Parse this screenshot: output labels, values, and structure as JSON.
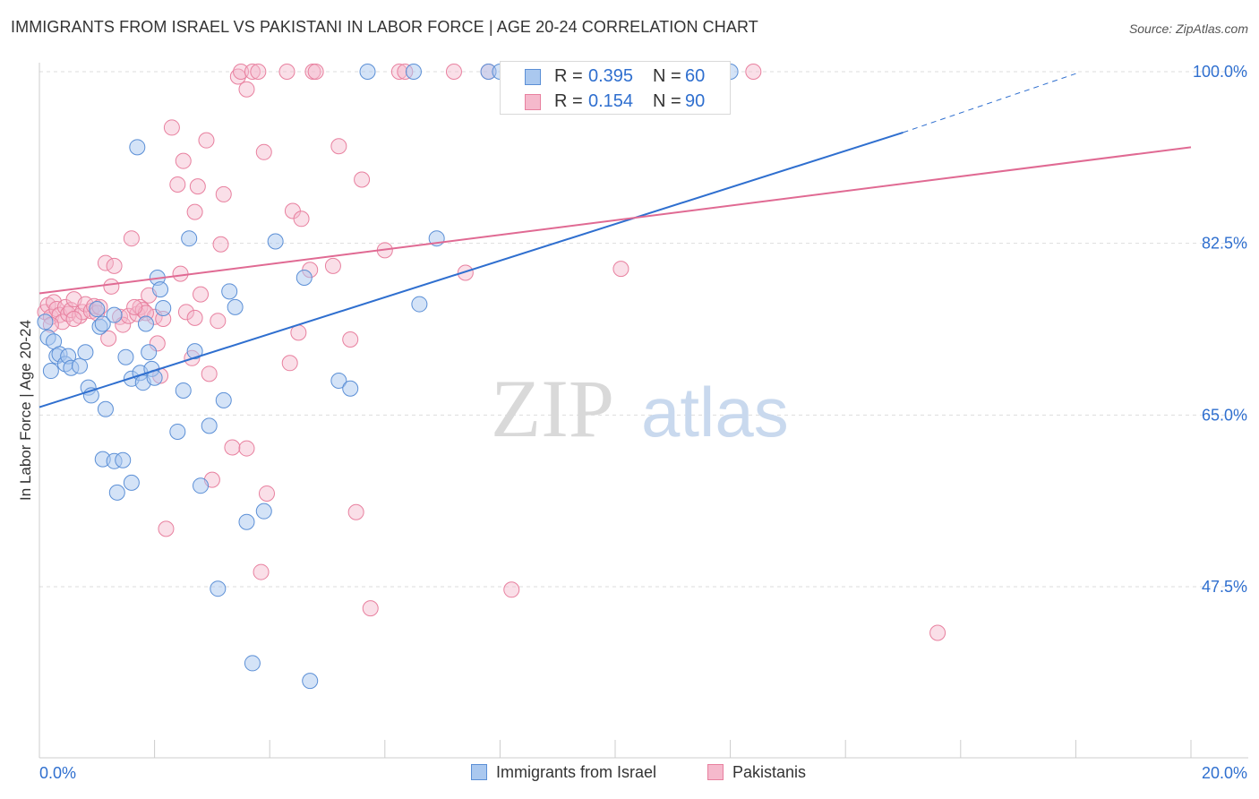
{
  "title": "IMMIGRANTS FROM ISRAEL VS PAKISTANI IN LABOR FORCE | AGE 20-24 CORRELATION CHART",
  "source": "Source: ZipAtlas.com",
  "watermark": {
    "zip": "ZIP",
    "atlas": "atlas"
  },
  "legend_box": {
    "r_label": "R =",
    "n_label": "N =",
    "israel": {
      "r": "0.395",
      "n": "60"
    },
    "pakistani": {
      "r": "0.154",
      "n": "90"
    }
  },
  "colors": {
    "israel_fill": "#aac8ef",
    "israel_stroke": "#5b8fd6",
    "israel_line": "#2f6fcf",
    "pakistani_fill": "#f5b9cc",
    "pakistani_stroke": "#e8809f",
    "pakistani_line": "#e06a93",
    "value_text": "#2f6fcf",
    "grid": "#dddddd",
    "axis": "#cccccc"
  },
  "chart_data": {
    "type": "scatter",
    "title": "IMMIGRANTS FROM ISRAEL VS PAKISTANI IN LABOR FORCE | AGE 20-24 CORRELATION CHART",
    "xlabel": "",
    "ylabel": "In Labor Force | Age 20-24",
    "xlim": [
      0,
      20
    ],
    "ylim": [
      32,
      103.5
    ],
    "x_tick_labels": [
      "0.0%",
      "20.0%"
    ],
    "y_ticks": [
      47.5,
      65.0,
      82.5,
      100.0
    ],
    "y_tick_labels": [
      "47.5%",
      "65.0%",
      "82.5%",
      "100.0%"
    ],
    "grid": true,
    "legend_position": "top-center",
    "series": [
      {
        "name": "Immigrants from Israel",
        "r": 0.395,
        "n": 60,
        "trend": {
          "x0": 0,
          "y0": 65.8,
          "x1": 15.0,
          "y1": 93.8,
          "dashed_to_x": 18.0,
          "dashed_to_y": 99.8
        },
        "points": [
          [
            0.1,
            74.5
          ],
          [
            0.15,
            72.9
          ],
          [
            0.2,
            69.5
          ],
          [
            0.25,
            72.5
          ],
          [
            0.3,
            71.0
          ],
          [
            0.35,
            71.2
          ],
          [
            0.45,
            70.2
          ],
          [
            0.5,
            71.0
          ],
          [
            0.55,
            69.8
          ],
          [
            0.7,
            70.0
          ],
          [
            0.8,
            71.4
          ],
          [
            0.85,
            67.8
          ],
          [
            0.9,
            67.0
          ],
          [
            1.0,
            75.8
          ],
          [
            1.05,
            74.0
          ],
          [
            1.1,
            74.3
          ],
          [
            1.15,
            65.6
          ],
          [
            1.3,
            75.2
          ],
          [
            1.5,
            70.9
          ],
          [
            1.6,
            68.7
          ],
          [
            1.75,
            69.3
          ],
          [
            1.8,
            68.3
          ],
          [
            1.85,
            74.3
          ],
          [
            1.9,
            71.4
          ],
          [
            1.95,
            69.7
          ],
          [
            2.0,
            68.8
          ],
          [
            2.05,
            79.0
          ],
          [
            2.1,
            77.8
          ],
          [
            2.15,
            75.9
          ],
          [
            2.4,
            63.3
          ],
          [
            2.5,
            67.5
          ],
          [
            2.6,
            83.0
          ],
          [
            2.7,
            71.5
          ],
          [
            2.8,
            57.8
          ],
          [
            2.95,
            63.9
          ],
          [
            3.2,
            66.5
          ],
          [
            3.3,
            77.6
          ],
          [
            3.4,
            76.0
          ],
          [
            3.6,
            54.1
          ],
          [
            3.7,
            39.7
          ],
          [
            3.9,
            55.2
          ],
          [
            4.1,
            82.7
          ],
          [
            4.6,
            79.0
          ],
          [
            4.7,
            37.9
          ],
          [
            5.2,
            68.5
          ],
          [
            5.4,
            67.7
          ],
          [
            5.7,
            100.0
          ],
          [
            6.5,
            100.0
          ],
          [
            6.6,
            76.3
          ],
          [
            6.9,
            83.0
          ],
          [
            7.8,
            100.0
          ],
          [
            8.0,
            100.0
          ],
          [
            1.1,
            60.5
          ],
          [
            1.3,
            60.3
          ],
          [
            1.45,
            60.4
          ],
          [
            1.35,
            57.1
          ],
          [
            1.6,
            58.1
          ],
          [
            1.7,
            92.3
          ],
          [
            3.1,
            47.3
          ],
          [
            12.0,
            100.0
          ]
        ]
      },
      {
        "name": "Pakistanis",
        "r": 0.154,
        "n": 90,
        "trend": {
          "x0": 0,
          "y0": 77.4,
          "x1": 20.0,
          "y1": 92.3
        },
        "points": [
          [
            0.1,
            75.5
          ],
          [
            0.15,
            76.2
          ],
          [
            0.2,
            75.0
          ],
          [
            0.25,
            76.5
          ],
          [
            0.3,
            75.8
          ],
          [
            0.35,
            75.2
          ],
          [
            0.4,
            74.5
          ],
          [
            0.45,
            76.0
          ],
          [
            0.5,
            75.3
          ],
          [
            0.55,
            75.7
          ],
          [
            0.6,
            76.8
          ],
          [
            0.7,
            75.1
          ],
          [
            0.75,
            75.5
          ],
          [
            0.8,
            76.3
          ],
          [
            0.9,
            75.6
          ],
          [
            0.95,
            76.1
          ],
          [
            1.0,
            75.4
          ],
          [
            1.05,
            76.0
          ],
          [
            1.15,
            80.5
          ],
          [
            1.2,
            72.8
          ],
          [
            1.3,
            80.2
          ],
          [
            1.4,
            75.0
          ],
          [
            1.45,
            74.2
          ],
          [
            1.55,
            75.1
          ],
          [
            1.6,
            83.0
          ],
          [
            1.7,
            75.3
          ],
          [
            1.75,
            76.0
          ],
          [
            1.8,
            75.7
          ],
          [
            1.9,
            77.2
          ],
          [
            2.0,
            75.0
          ],
          [
            2.05,
            72.3
          ],
          [
            2.1,
            69.0
          ],
          [
            2.2,
            53.4
          ],
          [
            2.3,
            94.3
          ],
          [
            2.4,
            88.5
          ],
          [
            2.5,
            90.9
          ],
          [
            2.55,
            75.5
          ],
          [
            2.65,
            70.8
          ],
          [
            2.7,
            85.7
          ],
          [
            2.75,
            88.3
          ],
          [
            2.8,
            77.3
          ],
          [
            2.9,
            93.0
          ],
          [
            2.95,
            69.2
          ],
          [
            3.0,
            58.4
          ],
          [
            3.1,
            74.6
          ],
          [
            3.15,
            82.4
          ],
          [
            3.2,
            87.5
          ],
          [
            3.35,
            61.7
          ],
          [
            3.45,
            99.5
          ],
          [
            3.5,
            100.0
          ],
          [
            3.6,
            98.2
          ],
          [
            3.6,
            61.6
          ],
          [
            3.7,
            100.0
          ],
          [
            3.8,
            100.0
          ],
          [
            3.85,
            49.0
          ],
          [
            3.9,
            91.8
          ],
          [
            3.95,
            57.0
          ],
          [
            4.3,
            100.0
          ],
          [
            4.35,
            70.3
          ],
          [
            4.4,
            85.8
          ],
          [
            4.5,
            73.4
          ],
          [
            4.55,
            85.0
          ],
          [
            4.7,
            79.8
          ],
          [
            4.75,
            100.0
          ],
          [
            4.8,
            100.0
          ],
          [
            5.1,
            80.2
          ],
          [
            5.2,
            92.4
          ],
          [
            5.4,
            72.7
          ],
          [
            5.5,
            55.1
          ],
          [
            5.6,
            89.0
          ],
          [
            5.75,
            45.3
          ],
          [
            6.0,
            81.8
          ],
          [
            6.25,
            100.0
          ],
          [
            6.35,
            100.0
          ],
          [
            7.2,
            100.0
          ],
          [
            7.4,
            79.5
          ],
          [
            7.8,
            100.0
          ],
          [
            8.2,
            47.2
          ],
          [
            9.0,
            100.0
          ],
          [
            10.1,
            79.9
          ],
          [
            12.4,
            100.0
          ],
          [
            15.6,
            42.8
          ],
          [
            0.2,
            74.2
          ],
          [
            0.6,
            74.8
          ],
          [
            1.25,
            78.1
          ],
          [
            1.85,
            75.4
          ],
          [
            2.15,
            74.8
          ],
          [
            2.7,
            74.9
          ],
          [
            1.65,
            76.0
          ],
          [
            2.45,
            79.4
          ]
        ]
      }
    ]
  },
  "bottom_legend": {
    "israel": "Immigrants from Israel",
    "pakistani": "Pakistanis"
  }
}
